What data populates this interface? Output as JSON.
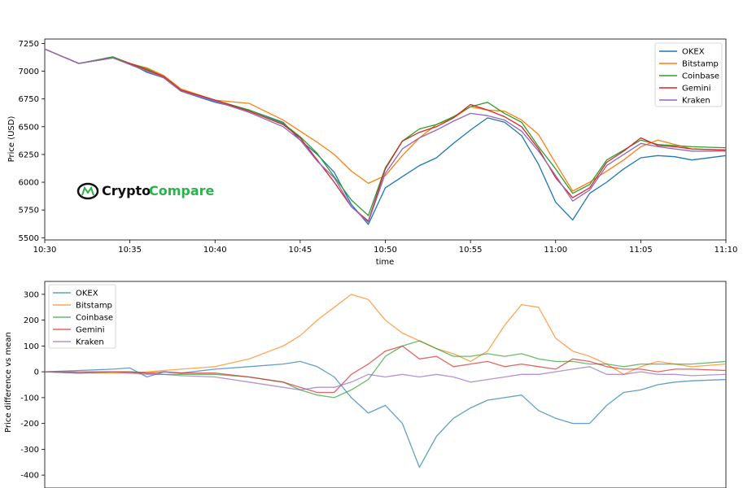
{
  "logo": {
    "part1": "Crypto",
    "part2": "Compare"
  },
  "colors": {
    "OKEX": "#1f77b4",
    "Bitstamp": "#ff7f0e",
    "Coinbase": "#2ca02c",
    "Gemini": "#d62728",
    "Kraken": "#9467bd"
  },
  "chart_data": [
    {
      "type": "line",
      "xlabel": "time",
      "ylabel": "Price (USD)",
      "xlim": [
        "10:30",
        "11:10"
      ],
      "ylim": [
        5480,
        7290
      ],
      "xticks": [
        "10:30",
        "10:35",
        "10:40",
        "10:45",
        "10:50",
        "10:55",
        "11:00",
        "11:05",
        "11:10"
      ],
      "yticks": [
        5500,
        5750,
        6000,
        6250,
        6500,
        6750,
        7000,
        7250
      ],
      "legend_position": "top-right",
      "grid": false,
      "x": [
        "10:30",
        "10:32",
        "10:34",
        "10:35",
        "10:36",
        "10:37",
        "10:38",
        "10:40",
        "10:42",
        "10:44",
        "10:45",
        "10:46",
        "10:47",
        "10:48",
        "10:49",
        "10:50",
        "10:51",
        "10:52",
        "10:53",
        "10:54",
        "10:55",
        "10:56",
        "10:57",
        "10:58",
        "10:59",
        "11:00",
        "11:01",
        "11:02",
        "11:03",
        "11:04",
        "11:05",
        "11:06",
        "11:07",
        "11:08",
        "11:10"
      ],
      "series": [
        {
          "name": "OKEX",
          "values": [
            7200,
            7070,
            7120,
            7070,
            6990,
            6940,
            6820,
            6720,
            6650,
            6540,
            6380,
            6250,
            6090,
            5800,
            5620,
            5950,
            6050,
            6150,
            6220,
            6350,
            6470,
            6580,
            6540,
            6420,
            6160,
            5820,
            5660,
            5900,
            6000,
            6120,
            6220,
            6240,
            6230,
            6200,
            6240
          ]
        },
        {
          "name": "Bitstamp",
          "values": [
            7200,
            7070,
            7120,
            7070,
            7030,
            6960,
            6840,
            6740,
            6710,
            6560,
            6460,
            6360,
            6250,
            6100,
            5990,
            6060,
            6240,
            6400,
            6520,
            6580,
            6680,
            6650,
            6640,
            6560,
            6430,
            6170,
            5920,
            6000,
            6100,
            6200,
            6320,
            6380,
            6340,
            6300,
            6290
          ]
        },
        {
          "name": "Coinbase",
          "values": [
            7200,
            7070,
            7130,
            7070,
            7020,
            6950,
            6830,
            6740,
            6650,
            6530,
            6410,
            6260,
            6050,
            5840,
            5700,
            6130,
            6370,
            6480,
            6520,
            6590,
            6680,
            6720,
            6620,
            6540,
            6320,
            6120,
            5900,
            5980,
            6200,
            6290,
            6380,
            6340,
            6330,
            6320,
            6310
          ]
        },
        {
          "name": "Gemini",
          "values": [
            7200,
            7070,
            7120,
            7070,
            7010,
            6950,
            6830,
            6740,
            6640,
            6520,
            6400,
            6200,
            6000,
            5780,
            5650,
            6120,
            6370,
            6450,
            6500,
            6580,
            6700,
            6650,
            6590,
            6500,
            6300,
            6040,
            5860,
            5950,
            6180,
            6280,
            6400,
            6330,
            6320,
            6300,
            6290
          ]
        },
        {
          "name": "Kraken",
          "values": [
            7200,
            7070,
            7120,
            7060,
            7000,
            6940,
            6820,
            6730,
            6630,
            6500,
            6380,
            6190,
            6040,
            5780,
            5640,
            6080,
            6300,
            6400,
            6470,
            6550,
            6620,
            6600,
            6560,
            6460,
            6280,
            6060,
            5830,
            5930,
            6150,
            6250,
            6350,
            6320,
            6300,
            6280,
            6280
          ]
        }
      ]
    },
    {
      "type": "line",
      "xlabel": "",
      "ylabel": "Price difference vs mean",
      "xlim": [
        "10:30",
        "11:10"
      ],
      "ylim": [
        -450,
        350
      ],
      "xticks": [
        "10:30",
        "10:35",
        "10:40",
        "10:45",
        "10:50",
        "10:55",
        "11:00",
        "11:05",
        "11:10"
      ],
      "yticks": [
        300,
        200,
        100,
        0,
        -100,
        -200,
        -300,
        -400
      ],
      "legend_position": "top-left",
      "grid": false,
      "x": [
        "10:30",
        "10:32",
        "10:34",
        "10:35",
        "10:36",
        "10:37",
        "10:38",
        "10:40",
        "10:42",
        "10:44",
        "10:45",
        "10:46",
        "10:47",
        "10:48",
        "10:49",
        "10:50",
        "10:51",
        "10:52",
        "10:53",
        "10:54",
        "10:55",
        "10:56",
        "10:57",
        "10:58",
        "10:59",
        "11:00",
        "11:01",
        "11:02",
        "11:03",
        "11:04",
        "11:05",
        "11:06",
        "11:07",
        "11:08",
        "11:10"
      ],
      "series": [
        {
          "name": "OKEX",
          "values": [
            0,
            5,
            10,
            15,
            -20,
            0,
            -5,
            10,
            20,
            30,
            40,
            20,
            -20,
            -100,
            -160,
            -130,
            -200,
            -370,
            -250,
            -180,
            -140,
            -110,
            -100,
            -90,
            -150,
            -180,
            -200,
            -200,
            -130,
            -80,
            -70,
            -50,
            -40,
            -35,
            -30
          ]
        },
        {
          "name": "Bitstamp",
          "values": [
            0,
            -5,
            -5,
            -5,
            0,
            5,
            10,
            20,
            50,
            100,
            140,
            200,
            250,
            300,
            280,
            200,
            150,
            120,
            90,
            70,
            40,
            80,
            180,
            260,
            250,
            130,
            80,
            60,
            30,
            -10,
            20,
            40,
            30,
            20,
            30
          ]
        },
        {
          "name": "Coinbase",
          "values": [
            0,
            -5,
            0,
            0,
            -5,
            -10,
            -10,
            -10,
            -20,
            -40,
            -70,
            -90,
            -100,
            -70,
            -30,
            60,
            100,
            120,
            90,
            60,
            60,
            70,
            60,
            70,
            50,
            40,
            40,
            30,
            30,
            20,
            30,
            30,
            30,
            30,
            40
          ]
        },
        {
          "name": "Gemini",
          "values": [
            0,
            0,
            0,
            0,
            -5,
            0,
            -5,
            -5,
            -20,
            -40,
            -60,
            -80,
            -80,
            -10,
            30,
            80,
            100,
            50,
            60,
            20,
            30,
            40,
            20,
            30,
            20,
            10,
            50,
            40,
            20,
            10,
            10,
            0,
            10,
            10,
            5
          ]
        },
        {
          "name": "Kraken",
          "values": [
            0,
            -5,
            0,
            -5,
            -10,
            -10,
            -15,
            -20,
            -40,
            -60,
            -70,
            -60,
            -60,
            -40,
            -10,
            -20,
            -10,
            -20,
            -10,
            -20,
            -40,
            -30,
            -20,
            -10,
            -10,
            0,
            10,
            20,
            -10,
            -10,
            0,
            -10,
            -10,
            -15,
            -10
          ]
        }
      ]
    }
  ]
}
